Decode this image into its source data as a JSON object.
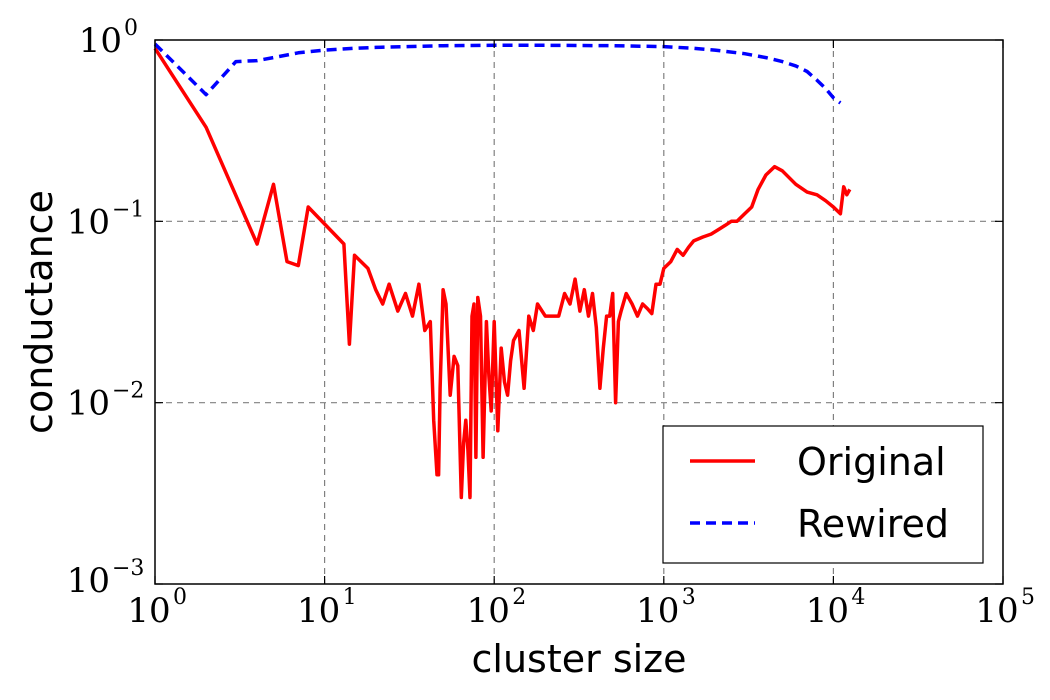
{
  "chart_data": {
    "type": "line",
    "title": "",
    "xlabel": "cluster size",
    "ylabel": "conductance",
    "xscale": "log",
    "yscale": "log",
    "xlim": [
      1,
      100000
    ],
    "ylim": [
      0.001,
      1
    ],
    "grid": true,
    "legend_position": "bottom-right",
    "x_ticks": [
      {
        "value": 1,
        "base": "10",
        "exp": "0"
      },
      {
        "value": 10,
        "base": "10",
        "exp": "1"
      },
      {
        "value": 100,
        "base": "10",
        "exp": "2"
      },
      {
        "value": 1000,
        "base": "10",
        "exp": "3"
      },
      {
        "value": 10000,
        "base": "10",
        "exp": "4"
      },
      {
        "value": 100000,
        "base": "10",
        "exp": "5"
      }
    ],
    "y_ticks": [
      {
        "value": 1,
        "base": "10",
        "exp": "0"
      },
      {
        "value": 0.1,
        "base": "10",
        "exp": "−1"
      },
      {
        "value": 0.01,
        "base": "10",
        "exp": "−2"
      },
      {
        "value": 0.001,
        "base": "10",
        "exp": "−3"
      }
    ],
    "series": [
      {
        "name": "Original",
        "color": "#ff0000",
        "style": "solid",
        "x": [
          1,
          2,
          4,
          5,
          6,
          7,
          8,
          13,
          14,
          15,
          18,
          20,
          22,
          24,
          27,
          30,
          33,
          36,
          39,
          42,
          44,
          46,
          47,
          48,
          50,
          52,
          55,
          58,
          61,
          64,
          66,
          68,
          70,
          72,
          74,
          76,
          78,
          80,
          83,
          86,
          88,
          90,
          93,
          96,
          100,
          105,
          110,
          115,
          120,
          125,
          130,
          140,
          150,
          160,
          170,
          180,
          200,
          220,
          240,
          260,
          280,
          300,
          320,
          340,
          360,
          380,
          400,
          420,
          440,
          460,
          480,
          500,
          520,
          540,
          560,
          600,
          650,
          700,
          750,
          800,
          850,
          900,
          950,
          1000,
          1100,
          1200,
          1300,
          1400,
          1500,
          1700,
          1900,
          2100,
          2300,
          2500,
          2700,
          3000,
          3300,
          3600,
          4000,
          4500,
          5000,
          6000,
          7000,
          8000,
          9000,
          10000,
          11000,
          11500,
          12000,
          12500
        ],
        "y": [
          0.9,
          0.33,
          0.075,
          0.16,
          0.06,
          0.057,
          0.12,
          0.075,
          0.021,
          0.065,
          0.055,
          0.042,
          0.035,
          0.045,
          0.032,
          0.04,
          0.03,
          0.045,
          0.025,
          0.028,
          0.008,
          0.004,
          0.004,
          0.012,
          0.042,
          0.035,
          0.011,
          0.018,
          0.016,
          0.003,
          0.006,
          0.008,
          0.0055,
          0.003,
          0.03,
          0.035,
          0.005,
          0.038,
          0.03,
          0.005,
          0.012,
          0.028,
          0.014,
          0.009,
          0.028,
          0.007,
          0.02,
          0.013,
          0.011,
          0.017,
          0.022,
          0.025,
          0.012,
          0.03,
          0.025,
          0.035,
          0.03,
          0.03,
          0.03,
          0.04,
          0.035,
          0.048,
          0.032,
          0.042,
          0.03,
          0.04,
          0.026,
          0.012,
          0.02,
          0.03,
          0.03,
          0.04,
          0.01,
          0.028,
          0.032,
          0.04,
          0.035,
          0.03,
          0.035,
          0.033,
          0.031,
          0.045,
          0.045,
          0.055,
          0.06,
          0.07,
          0.065,
          0.072,
          0.078,
          0.082,
          0.085,
          0.09,
          0.095,
          0.1,
          0.1,
          0.11,
          0.12,
          0.15,
          0.18,
          0.2,
          0.19,
          0.16,
          0.145,
          0.14,
          0.13,
          0.12,
          0.11,
          0.155,
          0.14,
          0.15
        ]
      },
      {
        "name": "Rewired",
        "color": "#0000ff",
        "style": "dashed",
        "x": [
          1,
          2,
          3,
          4,
          5,
          7,
          10,
          15,
          20,
          30,
          50,
          100,
          200,
          500,
          1000,
          1500,
          2000,
          3000,
          4000,
          5000,
          6000,
          7000,
          8000,
          9000,
          10000,
          11000
        ],
        "y": [
          0.95,
          0.5,
          0.76,
          0.77,
          0.8,
          0.85,
          0.88,
          0.9,
          0.91,
          0.92,
          0.93,
          0.935,
          0.935,
          0.93,
          0.92,
          0.9,
          0.88,
          0.84,
          0.8,
          0.76,
          0.72,
          0.67,
          0.6,
          0.54,
          0.48,
          0.45
        ]
      }
    ]
  }
}
